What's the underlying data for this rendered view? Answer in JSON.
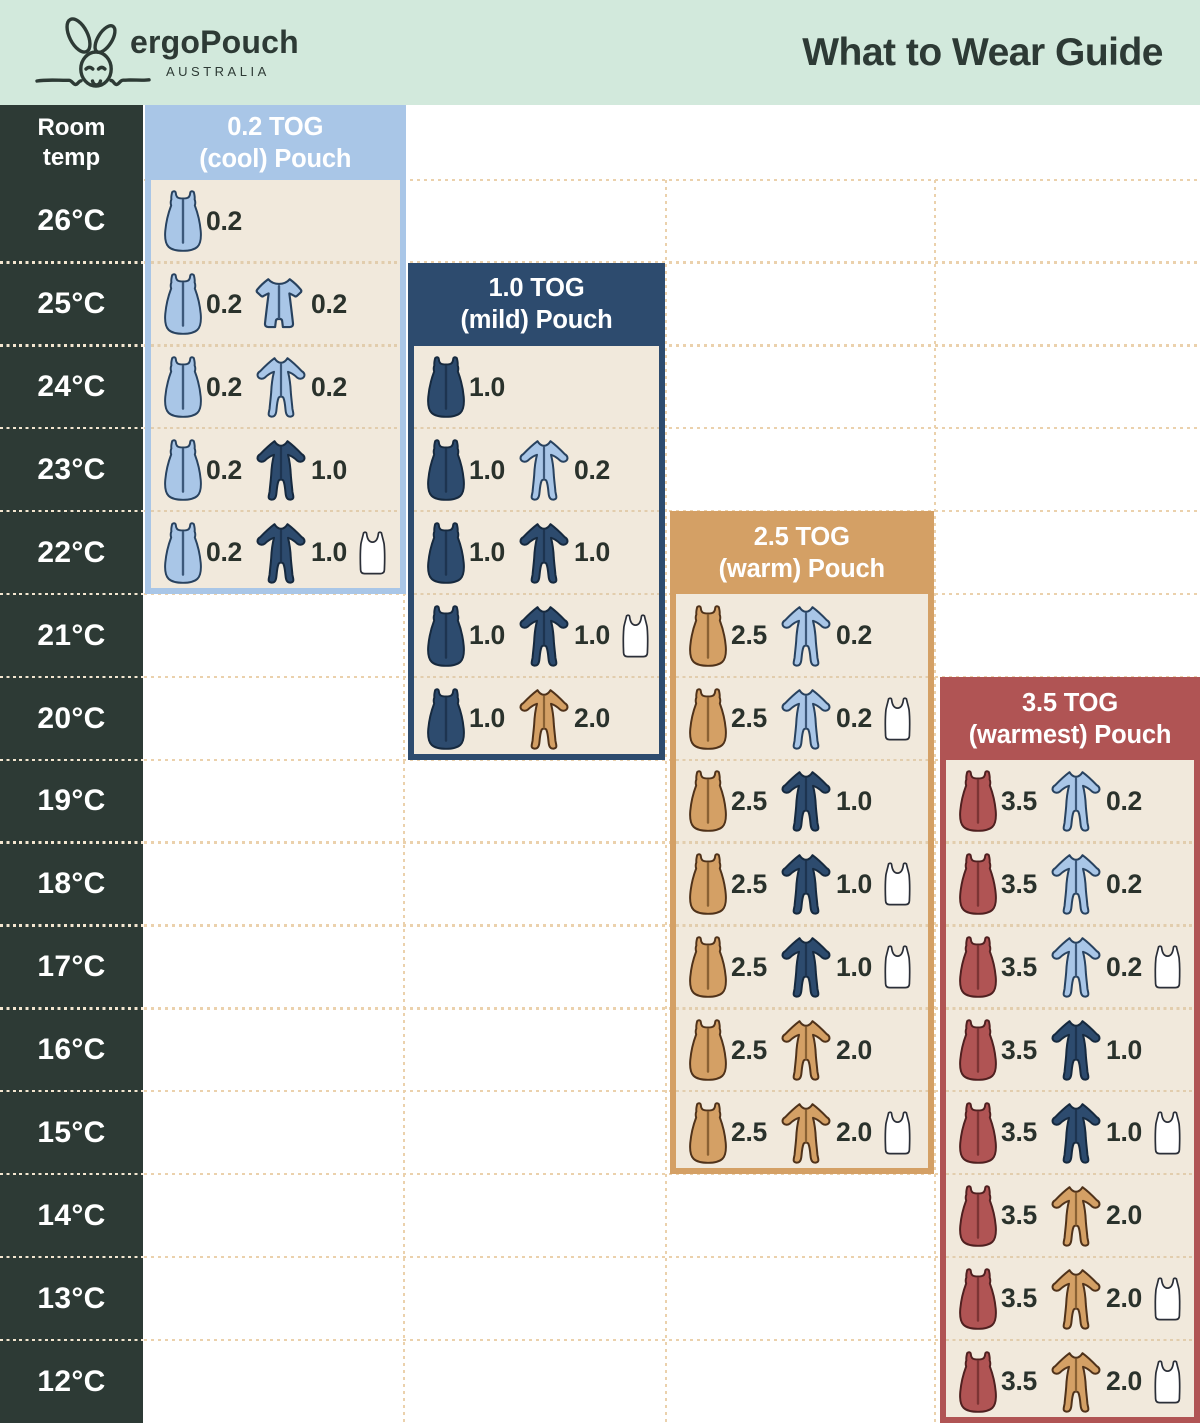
{
  "page": {
    "title": "What to Wear Guide"
  },
  "brand": {
    "name": "ergoPouch",
    "subtitle": "AUSTRALIA",
    "logo_icon": "bunny-line-art"
  },
  "temp_column": {
    "header_line1": "Room",
    "header_line2": "temp",
    "temps": [
      "26°C",
      "25°C",
      "24°C",
      "23°C",
      "22°C",
      "21°C",
      "20°C",
      "19°C",
      "18°C",
      "17°C",
      "16°C",
      "15°C",
      "14°C",
      "13°C",
      "12°C"
    ]
  },
  "colors": {
    "mint": "#d2e9dc",
    "dark": "#2d3a35",
    "ink": "#2a322c",
    "beige": "#f1e9dc",
    "light_blue": "#a9c6e7",
    "navy": "#2d4b6e",
    "tan": "#d4a065",
    "maroon": "#b05454",
    "grid_dot": "#ebd1ac",
    "grid_dot_beige": "#e2cdad",
    "grid_dot_dark": "#f3e6d0"
  },
  "panels": [
    {
      "id": "cool",
      "tog_line": "0.2 TOG",
      "label_line": "(cool) Pouch",
      "color": "light_blue",
      "rows": [
        {
          "temp": "26°C",
          "items": [
            {
              "type": "pouch",
              "color": "light_blue",
              "tog": "0.2"
            }
          ]
        },
        {
          "temp": "25°C",
          "items": [
            {
              "type": "pouch",
              "color": "light_blue",
              "tog": "0.2"
            },
            {
              "type": "romper",
              "color": "light_blue",
              "tog": "0.2"
            }
          ]
        },
        {
          "temp": "24°C",
          "items": [
            {
              "type": "pouch",
              "color": "light_blue",
              "tog": "0.2"
            },
            {
              "type": "onesie",
              "color": "light_blue",
              "tog": "0.2"
            }
          ]
        },
        {
          "temp": "23°C",
          "items": [
            {
              "type": "pouch",
              "color": "light_blue",
              "tog": "0.2"
            },
            {
              "type": "onesie",
              "color": "navy",
              "tog": "1.0"
            }
          ]
        },
        {
          "temp": "22°C",
          "items": [
            {
              "type": "pouch",
              "color": "light_blue",
              "tog": "0.2"
            },
            {
              "type": "onesie",
              "color": "navy",
              "tog": "1.0"
            },
            {
              "type": "singlet",
              "color": "white"
            }
          ]
        }
      ]
    },
    {
      "id": "mild",
      "tog_line": "1.0 TOG",
      "label_line": "(mild) Pouch",
      "color": "navy",
      "rows": [
        {
          "temp": "24°C",
          "items": [
            {
              "type": "pouch",
              "color": "navy",
              "tog": "1.0"
            }
          ]
        },
        {
          "temp": "23°C",
          "items": [
            {
              "type": "pouch",
              "color": "navy",
              "tog": "1.0"
            },
            {
              "type": "onesie",
              "color": "light_blue",
              "tog": "0.2"
            }
          ]
        },
        {
          "temp": "22°C",
          "items": [
            {
              "type": "pouch",
              "color": "navy",
              "tog": "1.0"
            },
            {
              "type": "onesie",
              "color": "navy",
              "tog": "1.0"
            }
          ]
        },
        {
          "temp": "21°C",
          "items": [
            {
              "type": "pouch",
              "color": "navy",
              "tog": "1.0"
            },
            {
              "type": "onesie",
              "color": "navy",
              "tog": "1.0"
            },
            {
              "type": "singlet",
              "color": "white"
            }
          ]
        },
        {
          "temp": "20°C",
          "items": [
            {
              "type": "pouch",
              "color": "navy",
              "tog": "1.0"
            },
            {
              "type": "onesie",
              "color": "tan",
              "tog": "2.0"
            }
          ]
        }
      ]
    },
    {
      "id": "warm",
      "tog_line": "2.5 TOG",
      "label_line": "(warm) Pouch",
      "color": "tan",
      "rows": [
        {
          "temp": "21°C",
          "items": [
            {
              "type": "pouch",
              "color": "tan",
              "tog": "2.5"
            },
            {
              "type": "onesie",
              "color": "light_blue",
              "tog": "0.2"
            }
          ]
        },
        {
          "temp": "20°C",
          "items": [
            {
              "type": "pouch",
              "color": "tan",
              "tog": "2.5"
            },
            {
              "type": "onesie",
              "color": "light_blue",
              "tog": "0.2"
            },
            {
              "type": "singlet",
              "color": "white"
            }
          ]
        },
        {
          "temp": "19°C",
          "items": [
            {
              "type": "pouch",
              "color": "tan",
              "tog": "2.5"
            },
            {
              "type": "onesie",
              "color": "navy",
              "tog": "1.0"
            }
          ]
        },
        {
          "temp": "18°C",
          "items": [
            {
              "type": "pouch",
              "color": "tan",
              "tog": "2.5"
            },
            {
              "type": "onesie",
              "color": "navy",
              "tog": "1.0"
            },
            {
              "type": "singlet",
              "color": "white"
            }
          ]
        },
        {
          "temp": "17°C",
          "items": [
            {
              "type": "pouch",
              "color": "tan",
              "tog": "2.5"
            },
            {
              "type": "onesie",
              "color": "navy",
              "tog": "1.0"
            },
            {
              "type": "singlet",
              "color": "white"
            }
          ]
        },
        {
          "temp": "16°C",
          "items": [
            {
              "type": "pouch",
              "color": "tan",
              "tog": "2.5"
            },
            {
              "type": "onesie",
              "color": "tan",
              "tog": "2.0"
            }
          ]
        },
        {
          "temp": "15°C",
          "items": [
            {
              "type": "pouch",
              "color": "tan",
              "tog": "2.5"
            },
            {
              "type": "onesie",
              "color": "tan",
              "tog": "2.0"
            },
            {
              "type": "singlet",
              "color": "white"
            }
          ]
        }
      ]
    },
    {
      "id": "warmest",
      "tog_line": "3.5 TOG",
      "label_line": "(warmest) Pouch",
      "color": "maroon",
      "rows": [
        {
          "temp": "19°C",
          "items": [
            {
              "type": "pouch",
              "color": "maroon",
              "tog": "3.5"
            },
            {
              "type": "onesie",
              "color": "light_blue",
              "tog": "0.2"
            }
          ]
        },
        {
          "temp": "18°C",
          "items": [
            {
              "type": "pouch",
              "color": "maroon",
              "tog": "3.5"
            },
            {
              "type": "onesie",
              "color": "light_blue",
              "tog": "0.2"
            }
          ]
        },
        {
          "temp": "17°C",
          "items": [
            {
              "type": "pouch",
              "color": "maroon",
              "tog": "3.5"
            },
            {
              "type": "onesie",
              "color": "light_blue",
              "tog": "0.2"
            },
            {
              "type": "singlet",
              "color": "white"
            }
          ]
        },
        {
          "temp": "16°C",
          "items": [
            {
              "type": "pouch",
              "color": "maroon",
              "tog": "3.5"
            },
            {
              "type": "onesie",
              "color": "navy",
              "tog": "1.0"
            }
          ]
        },
        {
          "temp": "15°C",
          "items": [
            {
              "type": "pouch",
              "color": "maroon",
              "tog": "3.5"
            },
            {
              "type": "onesie",
              "color": "navy",
              "tog": "1.0"
            },
            {
              "type": "singlet",
              "color": "white"
            }
          ]
        },
        {
          "temp": "14°C",
          "items": [
            {
              "type": "pouch",
              "color": "maroon",
              "tog": "3.5"
            },
            {
              "type": "onesie",
              "color": "tan",
              "tog": "2.0"
            }
          ]
        },
        {
          "temp": "13°C",
          "items": [
            {
              "type": "pouch",
              "color": "maroon",
              "tog": "3.5"
            },
            {
              "type": "onesie",
              "color": "tan",
              "tog": "2.0"
            },
            {
              "type": "singlet",
              "color": "white"
            }
          ]
        },
        {
          "temp": "12°C",
          "items": [
            {
              "type": "pouch",
              "color": "maroon",
              "tog": "3.5"
            },
            {
              "type": "onesie",
              "color": "tan",
              "tog": "2.0"
            },
            {
              "type": "singlet",
              "color": "white"
            }
          ]
        }
      ]
    }
  ]
}
